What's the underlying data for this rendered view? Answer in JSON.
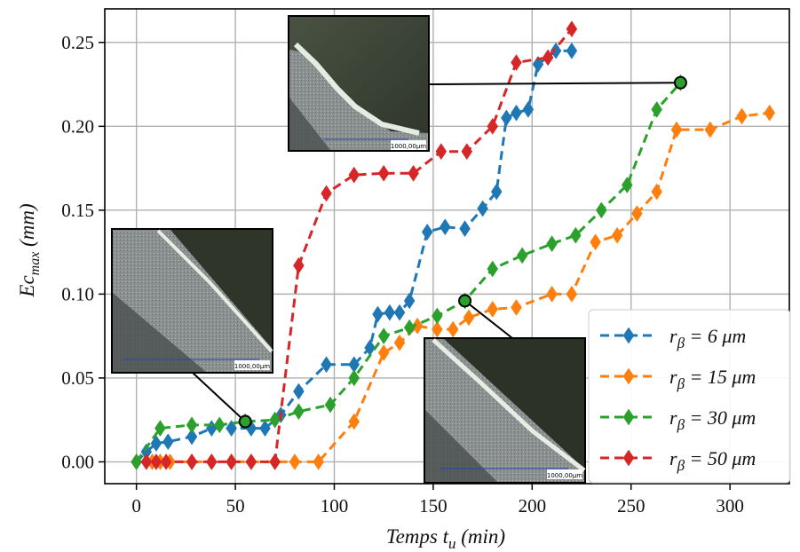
{
  "chart_data": {
    "type": "line",
    "xlabel_main": "Temps t",
    "xlabel_sub": "u",
    "xlabel_unit": " (min)",
    "ylabel_main": "Ec",
    "ylabel_sub": "max",
    "ylabel_unit": " (mm)",
    "xlim": [
      -16,
      330
    ],
    "ylim": [
      -0.013,
      0.27
    ],
    "xticks": [
      0,
      50,
      100,
      150,
      200,
      250,
      300
    ],
    "yticks": [
      0.0,
      0.05,
      0.1,
      0.15,
      0.2,
      0.25
    ],
    "ytick_labels": [
      "0.00",
      "0.05",
      "0.10",
      "0.15",
      "0.20",
      "0.25"
    ],
    "grid": true,
    "legend_position": "lower-right",
    "series": [
      {
        "name_prefix": "r",
        "name_sub": "β",
        "name_suffix": " = 6 μm",
        "color": "#1f77b4",
        "x": [
          0,
          5,
          10,
          16,
          28,
          38,
          48,
          58,
          65,
          73,
          82,
          96,
          110,
          118,
          122,
          128,
          133,
          138,
          147,
          156,
          166,
          175,
          182,
          187,
          192,
          198,
          203,
          212,
          220
        ],
        "y": [
          0,
          0.006,
          0.011,
          0.012,
          0.015,
          0.02,
          0.02,
          0.02,
          0.02,
          0.028,
          0.042,
          0.058,
          0.058,
          0.068,
          0.088,
          0.089,
          0.089,
          0.096,
          0.137,
          0.14,
          0.139,
          0.151,
          0.161,
          0.205,
          0.208,
          0.21,
          0.237,
          0.245,
          0.245
        ]
      },
      {
        "name_prefix": "r",
        "name_sub": "β",
        "name_suffix": " = 15 μm",
        "color": "#ff7f0e",
        "x": [
          0,
          8,
          12,
          17,
          28,
          38,
          48,
          58,
          70,
          80,
          92,
          110,
          125,
          133,
          142,
          152,
          160,
          168,
          180,
          192,
          210,
          220,
          232,
          243,
          253,
          263,
          273,
          290,
          306,
          320
        ],
        "y": [
          0,
          0,
          0,
          0,
          0,
          0,
          0,
          0,
          0,
          0,
          0,
          0.024,
          0.065,
          0.071,
          0.081,
          0.079,
          0.079,
          0.086,
          0.091,
          0.092,
          0.1,
          0.1,
          0.131,
          0.135,
          0.148,
          0.161,
          0.198,
          0.198,
          0.206,
          0.208
        ]
      },
      {
        "name_prefix": "r",
        "name_sub": "β",
        "name_suffix": " = 30 μm",
        "color": "#2ca02c",
        "x": [
          0,
          12,
          28,
          42,
          55,
          70,
          82,
          98,
          110,
          125,
          138,
          152,
          166,
          180,
          195,
          210,
          222,
          235,
          248,
          263,
          275
        ],
        "y": [
          0,
          0.02,
          0.022,
          0.022,
          0.024,
          0.025,
          0.03,
          0.034,
          0.05,
          0.075,
          0.08,
          0.087,
          0.096,
          0.115,
          0.123,
          0.13,
          0.135,
          0.15,
          0.165,
          0.21,
          0.226
        ]
      },
      {
        "name_prefix": "r",
        "name_sub": "β",
        "name_suffix": " = 50 μm",
        "color": "#d62728",
        "x": [
          5,
          10,
          15,
          28,
          38,
          48,
          58,
          70,
          82,
          96,
          110,
          125,
          140,
          154,
          167,
          180,
          192,
          208,
          220
        ],
        "y": [
          0,
          0,
          0,
          0,
          0,
          0,
          0,
          0,
          0.117,
          0.16,
          0.171,
          0.172,
          0.172,
          0.185,
          0.185,
          0.2,
          0.238,
          0.241,
          0.258
        ]
      }
    ],
    "annotations": [
      {
        "x": 55,
        "y": 0.024
      },
      {
        "x": 166,
        "y": 0.096
      },
      {
        "x": 275,
        "y": 0.226
      }
    ],
    "inset_scale_label": "1000,00μm"
  }
}
